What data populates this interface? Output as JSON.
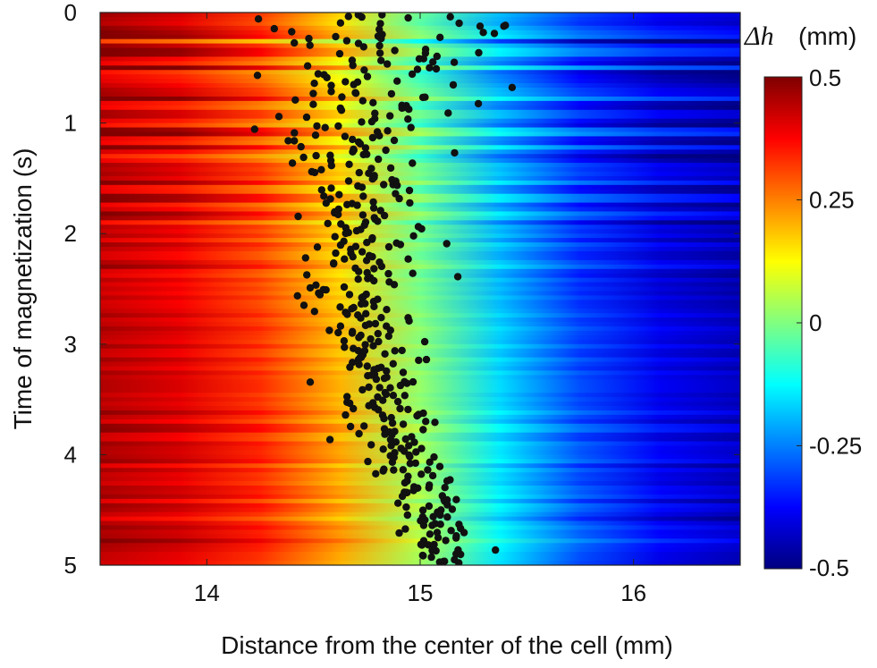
{
  "chart_data": {
    "type": "heatmap",
    "xlabel": "Distance from the center of the cell (mm)",
    "ylabel": "Time of magnetization (s)",
    "xlim": [
      13.5,
      16.5
    ],
    "ylim": [
      0,
      5
    ],
    "y_reversed": true,
    "x_ticks": [
      14,
      15,
      16
    ],
    "y_ticks": [
      0,
      1,
      2,
      3,
      4,
      5
    ],
    "colorbar": {
      "title": "Δh",
      "unit": "(mm)",
      "range": [
        -0.5,
        0.5
      ],
      "ticks": [
        0.5,
        0.25,
        0,
        -0.25,
        -0.5
      ],
      "tick_labels": [
        "0.5",
        "0.25",
        "0",
        "-0.25",
        "-0.5"
      ],
      "colormap": "jet"
    },
    "heatmap": {
      "description_values": "dh decreases from about 0.45 at x=13.5 to about -0.45 at x=16.5, zero crossing moving from ~14.9 at t=0 to ~15.1 at t=5, with horizontal banding strongest for t<3",
      "value_at_left_edge": 0.45,
      "value_at_right_edge": -0.45,
      "zero_crossing_t0": 14.9,
      "zero_crossing_t5": 15.1
    },
    "scatter": {
      "marker_color": "#111111",
      "center_path": [
        {
          "t": 0.0,
          "x": 14.95
        },
        {
          "t": 0.5,
          "x": 14.75
        },
        {
          "t": 1.0,
          "x": 14.7
        },
        {
          "t": 1.5,
          "x": 14.7
        },
        {
          "t": 2.0,
          "x": 14.75
        },
        {
          "t": 2.5,
          "x": 14.7
        },
        {
          "t": 3.0,
          "x": 14.8
        },
        {
          "t": 3.5,
          "x": 14.85
        },
        {
          "t": 4.0,
          "x": 14.9
        },
        {
          "t": 4.5,
          "x": 15.05
        },
        {
          "t": 5.0,
          "x": 15.1
        }
      ],
      "spread_path": [
        {
          "t": 0.0,
          "s": 0.35
        },
        {
          "t": 0.5,
          "s": 0.3
        },
        {
          "t": 1.0,
          "s": 0.2
        },
        {
          "t": 2.0,
          "s": 0.13
        },
        {
          "t": 3.0,
          "s": 0.11
        },
        {
          "t": 4.0,
          "s": 0.09
        },
        {
          "t": 5.0,
          "s": 0.08
        }
      ],
      "count": 460
    }
  }
}
